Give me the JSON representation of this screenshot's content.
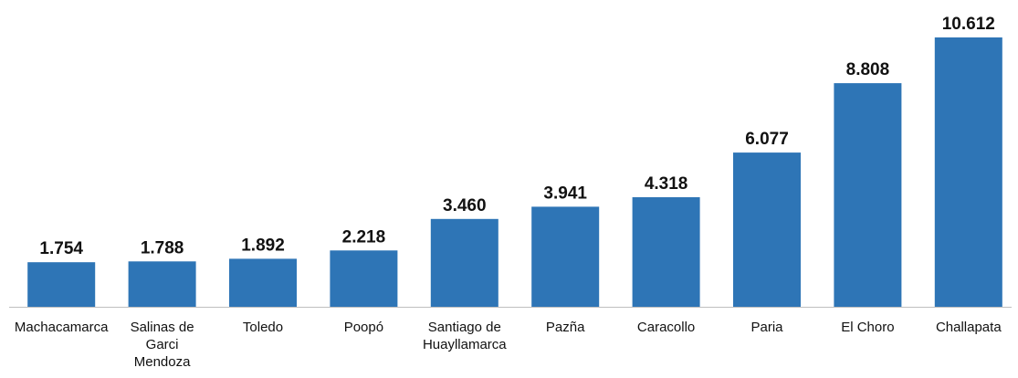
{
  "chart_data": {
    "type": "bar",
    "categories": [
      "Machacamarca",
      "Salinas de Garci Mendoza",
      "Toledo",
      "Poopó",
      "Santiago de Huayllamarca",
      "Pazña",
      "Caracollo",
      "Paria",
      "El Choro",
      "Challapata"
    ],
    "category_lines": [
      [
        "Machacamarca"
      ],
      [
        "Salinas de",
        "Garci",
        "Mendoza"
      ],
      [
        "Toledo"
      ],
      [
        "Poopó"
      ],
      [
        "Santiago de",
        "Huayllamarca"
      ],
      [
        "Pazña"
      ],
      [
        "Caracollo"
      ],
      [
        "Paria"
      ],
      [
        "El Choro"
      ],
      [
        "Challapata"
      ]
    ],
    "values": [
      1754,
      1788,
      1892,
      2218,
      3460,
      3941,
      4318,
      6077,
      8808,
      10612
    ],
    "data_labels": [
      "1.754",
      "1.788",
      "1.892",
      "2.218",
      "3.460",
      "3.941",
      "4.318",
      "6.077",
      "8.808",
      "10.612"
    ],
    "title": "",
    "xlabel": "",
    "ylabel": "",
    "ylim": [
      0,
      10612
    ],
    "grid": false,
    "legend": "none",
    "colors": {
      "bar": "#2e75b6",
      "axis": "#bfbfbf",
      "text": "#111111"
    }
  }
}
